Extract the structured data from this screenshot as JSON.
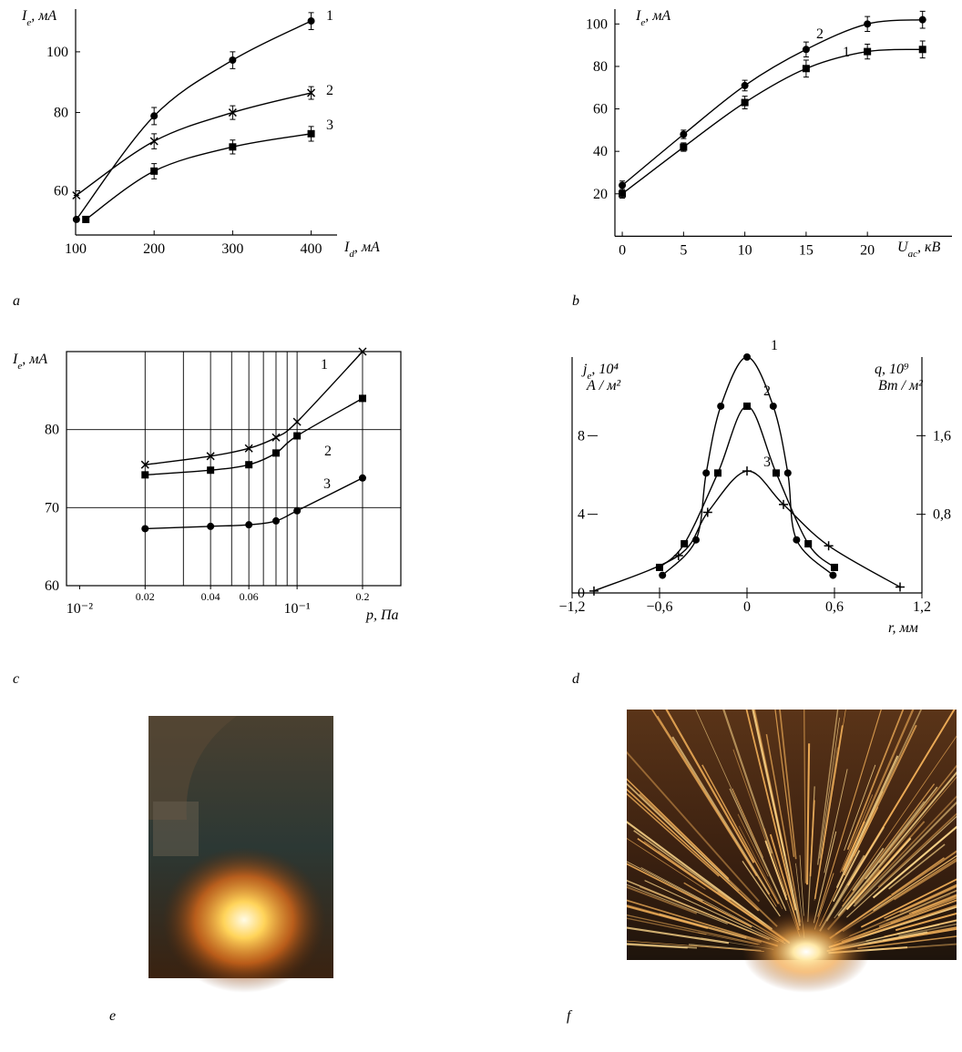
{
  "chart_data": [
    {
      "panel": "a",
      "type": "line",
      "ylog": true,
      "ylabel": {
        "main": "I",
        "sub": "e",
        "rest": ", мА"
      },
      "xlabel": {
        "main": "I",
        "sub": "d",
        "rest": ", мА"
      },
      "xlim": [
        100,
        433
      ],
      "xticks": [
        100,
        200,
        300,
        400
      ],
      "ylim": [
        51,
        117
      ],
      "yticks": [
        60,
        80,
        100
      ],
      "series": [
        {
          "name": "1",
          "marker": "circle",
          "color": "#000000",
          "x": [
            101,
            200,
            300,
            400
          ],
          "values": [
            54,
            79,
            97,
            112
          ],
          "errors": [
            0,
            2.5,
            3,
            3.5
          ]
        },
        {
          "name": "2",
          "marker": "x",
          "color": "#000000",
          "x": [
            101,
            200,
            300,
            400
          ],
          "values": [
            59,
            72,
            80,
            86
          ],
          "errors": [
            0,
            2,
            2,
            2
          ]
        },
        {
          "name": "3",
          "marker": "square",
          "color": "#000000",
          "x": [
            113,
            200,
            300,
            400
          ],
          "values": [
            54,
            64.5,
            70.5,
            74
          ],
          "errors": [
            0,
            1.8,
            1.8,
            2
          ]
        }
      ]
    },
    {
      "panel": "b",
      "type": "line",
      "ylabel": {
        "main": "I",
        "sub": "e",
        "rest": ", мА"
      },
      "xlabel": {
        "main": "U",
        "sub": "ac",
        "rest": ", кВ"
      },
      "xlim": [
        -0.6,
        26.9
      ],
      "xticks": [
        0,
        5,
        10,
        15,
        20
      ],
      "ylim": [
        0,
        107
      ],
      "yticks": [
        20,
        40,
        60,
        80,
        100
      ],
      "series": [
        {
          "name": "1",
          "marker": "square",
          "color": "#000000",
          "x": [
            0,
            5,
            10,
            15,
            20,
            24.5
          ],
          "values": [
            20,
            42,
            63,
            79,
            87,
            88
          ],
          "errors": [
            2,
            2,
            3,
            4,
            3.5,
            4
          ]
        },
        {
          "name": "2",
          "marker": "circle",
          "color": "#000000",
          "x": [
            0,
            5,
            10,
            15,
            20,
            24.5
          ],
          "values": [
            24,
            48,
            71,
            88,
            100,
            102
          ],
          "errors": [
            2,
            2,
            2.5,
            3.5,
            3.5,
            4
          ]
        }
      ]
    },
    {
      "panel": "c",
      "type": "line",
      "xlog": true,
      "grid": true,
      "ylabel": {
        "main": "I",
        "sub": "e",
        "rest": ", мА"
      },
      "xlabel": {
        "main": "p",
        "rest": ", Па"
      },
      "xlim": [
        0.0087,
        0.3
      ],
      "xticks": [
        {
          "value": 0.01,
          "label": "10⁻²"
        },
        0.02,
        0.04,
        0.06,
        {
          "value": 0.1,
          "label": "10⁻¹"
        },
        0.2
      ],
      "xgrid": [
        0.02,
        0.03,
        0.04,
        0.05,
        0.06,
        0.07,
        0.08,
        0.09,
        0.1,
        0.2
      ],
      "ylim": [
        60,
        90
      ],
      "yticks": [
        60,
        70,
        80
      ],
      "series": [
        {
          "name": "1",
          "marker": "x",
          "color": "#000000",
          "x": [
            0.02,
            0.04,
            0.06,
            0.08,
            0.1,
            0.2
          ],
          "values": [
            75.5,
            76.6,
            77.6,
            79,
            81,
            90
          ]
        },
        {
          "name": "2",
          "marker": "square",
          "color": "#000000",
          "x": [
            0.02,
            0.04,
            0.06,
            0.08,
            0.1,
            0.2
          ],
          "values": [
            74.2,
            74.8,
            75.5,
            77,
            79.2,
            84
          ]
        },
        {
          "name": "3",
          "marker": "circle",
          "color": "#000000",
          "x": [
            0.02,
            0.04,
            0.06,
            0.08,
            0.1,
            0.2
          ],
          "values": [
            67.3,
            67.6,
            67.8,
            68.3,
            69.6,
            73.8
          ]
        }
      ]
    },
    {
      "panel": "d",
      "type": "line",
      "ylabel": {
        "main": "j",
        "sub": "e",
        "rest": ", 10⁴",
        "line2": "А / м²"
      },
      "y2label": {
        "main": "q",
        "rest": ", 10⁹",
        "line2": "Вт / м²"
      },
      "xlabel": {
        "main": "r",
        "rest": ", мм"
      },
      "xlim": [
        -1.2,
        1.2
      ],
      "xticks": [
        {
          "value": -1.2,
          "label": "−1,2"
        },
        {
          "value": -0.6,
          "label": "−0,6"
        },
        0,
        {
          "value": 0.6,
          "label": "0,6"
        },
        {
          "value": 1.2,
          "label": "1,2"
        }
      ],
      "ylim": [
        0,
        12
      ],
      "yticks": [
        0,
        4,
        8
      ],
      "y2lim": [
        0,
        2.4
      ],
      "y2ticks": [
        {
          "value": 0.8,
          "label": "0,8"
        },
        {
          "value": 1.6,
          "label": "1,6"
        }
      ],
      "series": [
        {
          "name": "1",
          "marker": "circle",
          "color": "#000000",
          "x": [
            -0.58,
            -0.35,
            -0.28,
            -0.18,
            0,
            0.18,
            0.28,
            0.34,
            0.59
          ],
          "values": [
            0.9,
            2.7,
            6.1,
            9.5,
            12,
            9.5,
            6.1,
            2.7,
            0.9
          ]
        },
        {
          "name": "2",
          "marker": "square",
          "color": "#000000",
          "x": [
            -0.6,
            -0.43,
            -0.2,
            0,
            0.2,
            0.42,
            0.6
          ],
          "values": [
            1.3,
            2.5,
            6.1,
            9.5,
            6.1,
            2.5,
            1.3
          ]
        },
        {
          "name": "3",
          "marker": "plus",
          "color": "#000000",
          "x": [
            -1.05,
            -0.47,
            -0.27,
            0,
            0.25,
            0.56,
            1.05
          ],
          "values": [
            0.1,
            1.9,
            4.1,
            6.2,
            4.5,
            2.4,
            0.3
          ]
        }
      ]
    }
  ],
  "photos": [
    {
      "label": "e"
    },
    {
      "label": "f"
    }
  ]
}
